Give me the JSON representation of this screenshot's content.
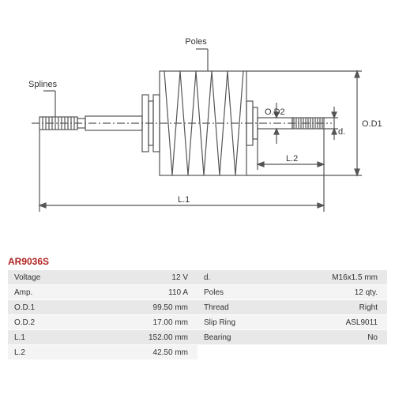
{
  "diagram": {
    "labels": {
      "splines": "Splines",
      "poles": "Poles",
      "od1": "O.D1",
      "od2": "O.D2",
      "l1": "L.1",
      "l2": "L.2",
      "d": "d."
    },
    "stroke_color": "#555555",
    "stroke_width": 1.2
  },
  "part_number": "AR9036S",
  "specs_left": [
    {
      "label": "Voltage",
      "value": "12 V"
    },
    {
      "label": "Amp.",
      "value": "110 A"
    },
    {
      "label": "O.D.1",
      "value": "99.50 mm"
    },
    {
      "label": "O.D.2",
      "value": "17.00 mm"
    },
    {
      "label": "L.1",
      "value": "152.00 mm"
    },
    {
      "label": "L.2",
      "value": "42.50 mm"
    }
  ],
  "specs_right": [
    {
      "label": "d.",
      "value": "M16x1.5 mm"
    },
    {
      "label": "Poles",
      "value": "12 qty."
    },
    {
      "label": "Thread",
      "value": "Right"
    },
    {
      "label": "Slip Ring",
      "value": "ASL9011"
    },
    {
      "label": "Bearing",
      "value": "No"
    }
  ]
}
